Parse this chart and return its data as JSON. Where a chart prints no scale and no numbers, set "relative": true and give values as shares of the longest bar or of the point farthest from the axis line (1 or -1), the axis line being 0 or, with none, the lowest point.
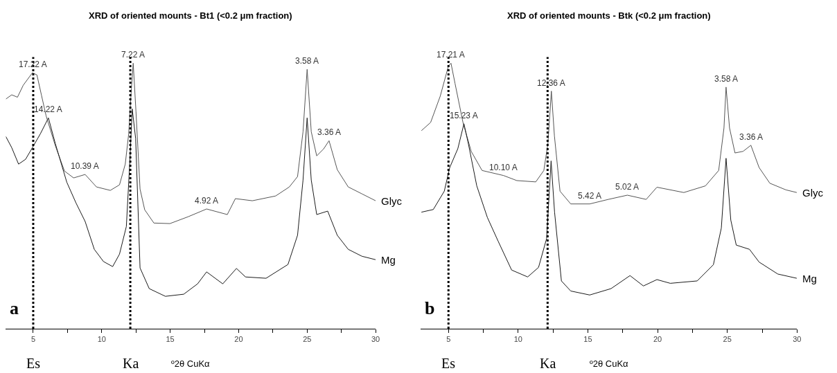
{
  "chart_data": [
    {
      "type": "line",
      "title": "XRD of oriented mounts - Bt1 (<0.2 μm fraction)",
      "xlabel": "º2θ CuKα",
      "relative": true,
      "tick_labels": "x",
      "xlim": [
        3,
        30
      ],
      "xticks": [
        5,
        {
          "value": 7.5,
          "label": null
        },
        10,
        {
          "value": 12.5,
          "label": null
        },
        15,
        {
          "value": 17.5,
          "label": null
        },
        20,
        {
          "value": 22.5,
          "label": null
        },
        25,
        {
          "value": 27.5,
          "label": null
        },
        30
      ],
      "series": [
        {
          "name": "Glyc",
          "color": "#555555",
          "x": [
            3.0,
            3.43,
            3.85,
            4.27,
            4.94,
            5.27,
            5.6,
            5.94,
            6.61,
            7.28,
            7.95,
            8.79,
            9.62,
            10.63,
            11.3,
            11.72,
            11.97,
            12.17,
            12.3,
            12.5,
            12.8,
            13.14,
            13.81,
            14.98,
            16.32,
            17.66,
            19.17,
            19.76,
            21.0,
            22.7,
            23.7,
            24.3,
            24.7,
            25.0,
            25.3,
            25.7,
            26.2,
            26.6,
            27.2,
            28.0,
            29.0,
            30.0
          ],
          "values": [
            0.865,
            0.881,
            0.872,
            0.917,
            0.964,
            0.956,
            0.88,
            0.802,
            0.69,
            0.594,
            0.568,
            0.581,
            0.534,
            0.521,
            0.542,
            0.62,
            0.734,
            0.906,
            1.0,
            0.82,
            0.526,
            0.448,
            0.398,
            0.396,
            0.422,
            0.451,
            0.43,
            0.49,
            0.482,
            0.5,
            0.534,
            0.573,
            0.742,
            0.977,
            0.742,
            0.651,
            0.677,
            0.708,
            0.599,
            0.534,
            0.508,
            0.482
          ]
        },
        {
          "name": "Mg",
          "color": "#1a1a1a",
          "x": [
            3.0,
            3.43,
            3.93,
            4.44,
            4.94,
            5.52,
            6.11,
            6.61,
            7.45,
            8.12,
            8.79,
            9.46,
            10.13,
            10.8,
            11.3,
            11.8,
            12.07,
            12.23,
            12.48,
            12.8,
            13.47,
            14.65,
            15.99,
            17.0,
            17.66,
            18.84,
            19.84,
            20.5,
            22.0,
            23.6,
            24.3,
            24.7,
            25.0,
            25.3,
            25.7,
            26.5,
            27.2,
            28.0,
            29.0,
            30.0
          ],
          "values": [
            0.724,
            0.682,
            0.62,
            0.638,
            0.682,
            0.734,
            0.794,
            0.698,
            0.552,
            0.474,
            0.404,
            0.299,
            0.253,
            0.234,
            0.281,
            0.385,
            0.646,
            0.828,
            0.716,
            0.229,
            0.151,
            0.122,
            0.13,
            0.169,
            0.214,
            0.169,
            0.227,
            0.195,
            0.19,
            0.242,
            0.352,
            0.56,
            0.794,
            0.56,
            0.43,
            0.443,
            0.352,
            0.299,
            0.273,
            0.26
          ]
        }
      ],
      "ref_lines": [
        {
          "axis": "x",
          "value": 5.0,
          "label": "Es",
          "color": "#000000",
          "line_style": "dotted"
        },
        {
          "axis": "x",
          "value": 12.09,
          "label": "Ka",
          "color": "#000000",
          "line_style": "dotted"
        }
      ],
      "annotations": [
        "a",
        {
          "text": "17.22 A",
          "x": 5.0,
          "y": 0.964
        },
        {
          "text": "14.22 A",
          "x": 6.11,
          "y": 0.794
        },
        {
          "text": "10.39 A",
          "x": 8.79,
          "y": 0.581
        },
        {
          "text": "7.22 A",
          "x": 12.3,
          "y": 1.0
        },
        {
          "text": "4.92 A",
          "x": 17.66,
          "y": 0.451
        },
        {
          "text": "3.58 A",
          "x": 25.0,
          "y": 0.977
        },
        {
          "text": "3.36 A",
          "x": 26.6,
          "y": 0.708
        }
      ]
    },
    {
      "type": "line",
      "title": "XRD of oriented mounts - Btk (<0.2 μm fraction)",
      "xlabel": "º2θ CuKα",
      "relative": true,
      "tick_labels": "x",
      "xlim": [
        3,
        30
      ],
      "xticks": [
        5,
        {
          "value": 7.5,
          "label": null
        },
        10,
        {
          "value": 12.5,
          "label": null
        },
        15,
        {
          "value": 17.5,
          "label": null
        },
        20,
        {
          "value": 22.5,
          "label": null
        },
        25,
        {
          "value": 27.5,
          "label": null
        },
        30
      ],
      "series": [
        {
          "name": "Glyc",
          "color": "#555555",
          "x": [
            3.06,
            3.72,
            4.41,
            5.0,
            5.18,
            5.47,
            6.04,
            6.63,
            7.41,
            8.95,
            9.9,
            11.26,
            11.84,
            12.13,
            12.38,
            12.6,
            13.0,
            13.77,
            15.13,
            16.46,
            17.83,
            19.18,
            19.95,
            21.88,
            23.43,
            24.38,
            24.76,
            24.91,
            25.16,
            25.55,
            26.13,
            26.69,
            27.28,
            28.05,
            29.2,
            29.98
          ],
          "values": [
            0.746,
            0.777,
            0.876,
            0.99,
            1.0,
            0.924,
            0.777,
            0.668,
            0.596,
            0.577,
            0.558,
            0.553,
            0.596,
            0.696,
            0.895,
            0.726,
            0.518,
            0.47,
            0.47,
            0.487,
            0.503,
            0.487,
            0.533,
            0.513,
            0.538,
            0.596,
            0.756,
            0.91,
            0.756,
            0.662,
            0.668,
            0.691,
            0.607,
            0.548,
            0.523,
            0.513
          ]
        },
        {
          "name": "Mg",
          "color": "#1a1a1a",
          "x": [
            3.06,
            3.91,
            4.7,
            5.09,
            5.67,
            6.11,
            6.43,
            7.03,
            7.79,
            8.56,
            9.53,
            10.68,
            11.46,
            12.04,
            12.36,
            12.61,
            13.1,
            13.77,
            15.13,
            16.66,
            18.02,
            18.98,
            19.95,
            20.91,
            22.84,
            24.0,
            24.57,
            24.91,
            25.25,
            25.64,
            26.59,
            27.28,
            28.62,
            29.98
          ],
          "values": [
            0.439,
            0.449,
            0.518,
            0.607,
            0.678,
            0.772,
            0.696,
            0.538,
            0.419,
            0.33,
            0.221,
            0.195,
            0.231,
            0.34,
            0.632,
            0.439,
            0.18,
            0.142,
            0.127,
            0.151,
            0.2,
            0.161,
            0.185,
            0.171,
            0.18,
            0.241,
            0.379,
            0.642,
            0.409,
            0.315,
            0.299,
            0.251,
            0.206,
            0.19
          ]
        }
      ],
      "ref_lines": [
        {
          "axis": "x",
          "value": 5.0,
          "label": "Es",
          "color": "#000000",
          "line_style": "dotted"
        },
        {
          "axis": "x",
          "value": 12.11,
          "label": "Ka",
          "color": "#000000",
          "line_style": "dotted"
        }
      ],
      "annotations": [
        "b",
        {
          "text": "17.21 A",
          "x": 5.18,
          "y": 1.0
        },
        {
          "text": "15.23 A",
          "x": 6.11,
          "y": 0.772
        },
        {
          "text": "10.10 A",
          "x": 8.95,
          "y": 0.577
        },
        {
          "text": "12.36 A",
          "x": 12.38,
          "y": 0.895
        },
        {
          "text": "5.42 A",
          "x": 15.13,
          "y": 0.47
        },
        {
          "text": "5.02 A",
          "x": 17.83,
          "y": 0.503
        },
        {
          "text": "3.58 A",
          "x": 24.91,
          "y": 0.91
        },
        {
          "text": "3.36 A",
          "x": 26.69,
          "y": 0.691
        }
      ]
    }
  ]
}
